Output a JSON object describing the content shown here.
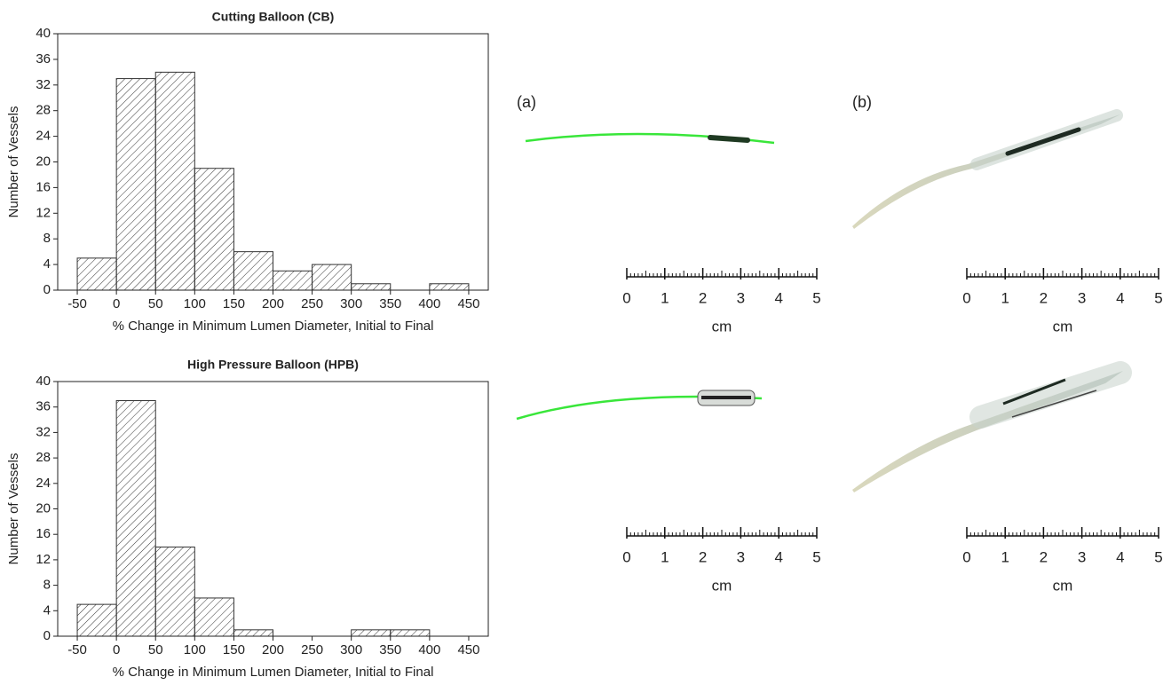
{
  "chart_data": [
    {
      "type": "histogram",
      "title": "Cutting Balloon (CB)",
      "xlabel": "% Change in Minimum Lumen Diameter, Initial to Final",
      "ylabel": "Number of Vessels",
      "bins": [
        -50,
        0,
        50,
        100,
        150,
        200,
        250,
        300,
        350,
        400,
        450
      ],
      "values": [
        5,
        33,
        34,
        19,
        6,
        3,
        4,
        1,
        0,
        1
      ],
      "xlim": [
        -75,
        475
      ],
      "ylim": [
        0,
        40
      ],
      "xticks": [
        -50,
        0,
        50,
        100,
        150,
        200,
        250,
        300,
        350,
        400,
        450
      ],
      "yticks": [
        0,
        4,
        8,
        12,
        16,
        20,
        24,
        28,
        32,
        36,
        40
      ],
      "color": "#333333"
    },
    {
      "type": "histogram",
      "title": "High Pressure Balloon (HPB)",
      "xlabel": "% Change in Minimum Lumen Diameter, Initial to Final",
      "ylabel": "Number of Vessels",
      "bins": [
        -50,
        0,
        50,
        100,
        150,
        200,
        250,
        300,
        350,
        400,
        450
      ],
      "values": [
        5,
        37,
        14,
        6,
        1,
        0,
        0,
        1,
        1,
        0
      ],
      "xlim": [
        -75,
        475
      ],
      "ylim": [
        0,
        40
      ],
      "xticks": [
        -50,
        0,
        50,
        100,
        150,
        200,
        250,
        300,
        350,
        400,
        450
      ],
      "yticks": [
        0,
        4,
        8,
        12,
        16,
        20,
        24,
        28,
        32,
        36,
        40
      ],
      "color": "#333333"
    }
  ],
  "panels": {
    "labels": [
      "(a)",
      "(b)"
    ],
    "ruler_ticks": [
      0,
      1,
      2,
      3,
      4,
      5
    ],
    "unit": "cm"
  }
}
